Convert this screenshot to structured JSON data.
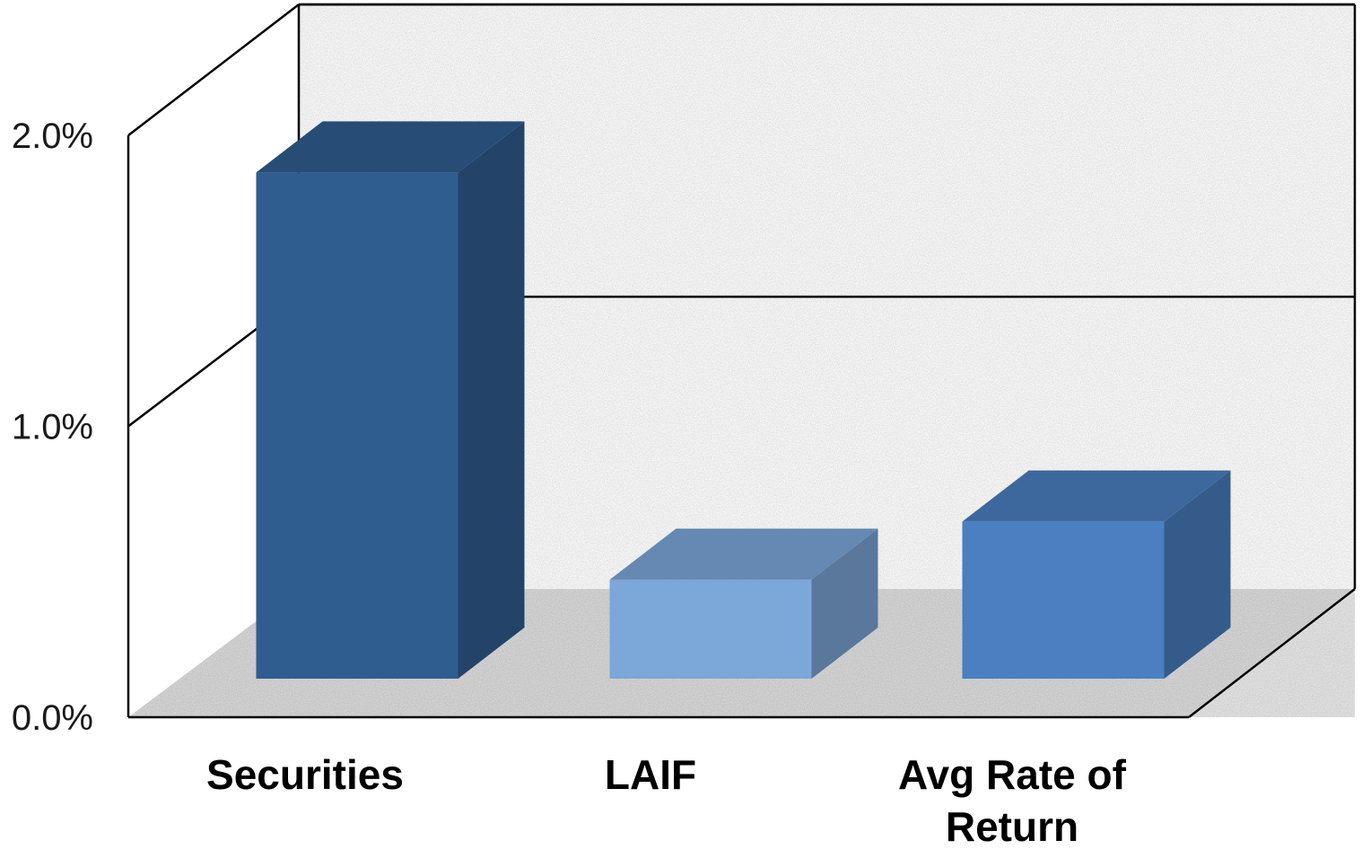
{
  "chart_data": {
    "type": "bar",
    "style": "3d-column",
    "categories": [
      "Securities",
      "LAIF",
      "Avg Rate of Return"
    ],
    "values": [
      1.74,
      0.34,
      0.54
    ],
    "bar_colors": [
      "#305d90",
      "#7ba7d9",
      "#4a7fc1"
    ],
    "ylim": [
      0,
      2.0
    ],
    "y_ticks": [
      0.0,
      1.0,
      2.0
    ],
    "y_tick_labels": [
      "0.0%",
      "1.0%",
      "2.0%"
    ],
    "grid": true,
    "legend": null
  }
}
